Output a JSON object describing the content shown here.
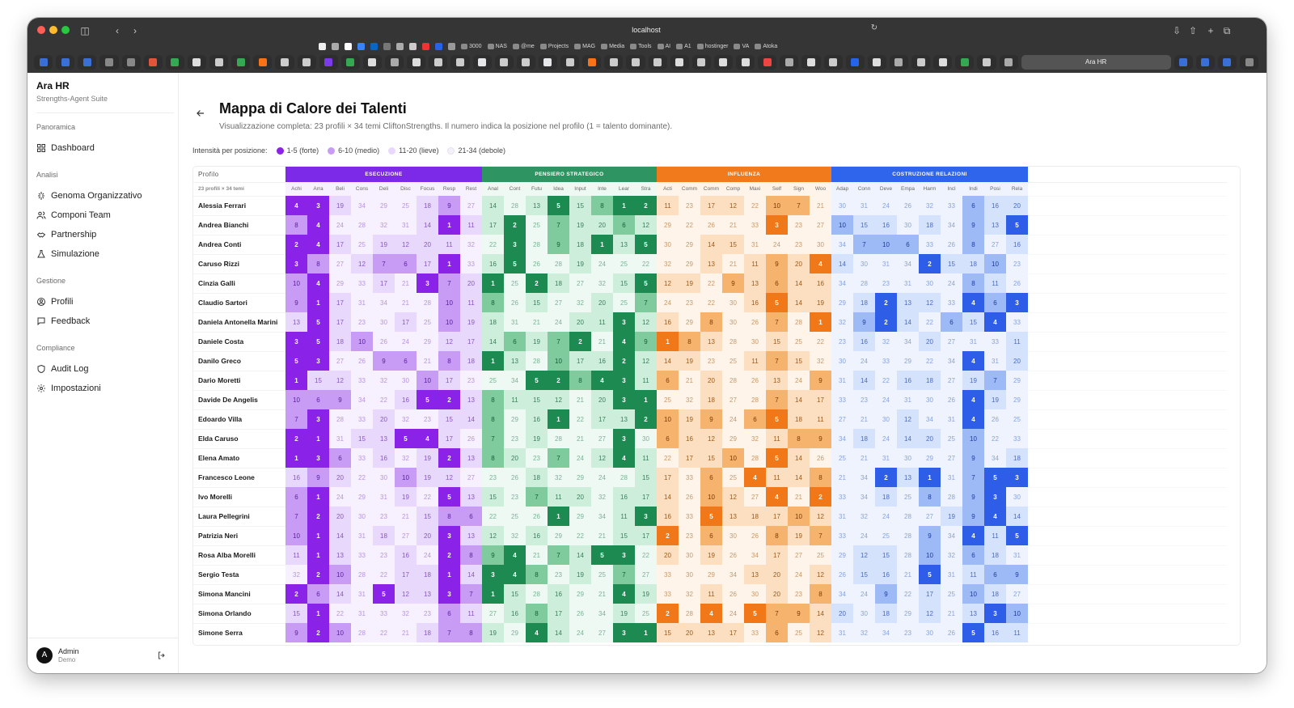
{
  "browser": {
    "url": "localhost",
    "active_tab": "Ara HR",
    "bookmarks": [
      "3000",
      "NAS",
      "@me",
      "Projects",
      "MAG",
      "Media",
      "Tools",
      "AI",
      "A1",
      "hostinger",
      "VA",
      "Atoka"
    ]
  },
  "app": {
    "name": "Ara HR",
    "subtitle": "Strengths-Agent Suite"
  },
  "sidebar": {
    "sections": [
      {
        "title": "Panoramica",
        "items": [
          {
            "label": "Dashboard",
            "icon": "grid-icon"
          }
        ]
      },
      {
        "title": "Analisi",
        "items": [
          {
            "label": "Genoma Organizzativo",
            "icon": "dna-icon"
          },
          {
            "label": "Componi Team",
            "icon": "users-icon"
          },
          {
            "label": "Partnership",
            "icon": "handshake-icon"
          },
          {
            "label": "Simulazione",
            "icon": "flask-icon"
          }
        ]
      },
      {
        "title": "Gestione",
        "items": [
          {
            "label": "Profili",
            "icon": "user-circle-icon"
          },
          {
            "label": "Feedback",
            "icon": "message-icon"
          }
        ]
      },
      {
        "title": "Compliance",
        "items": [
          {
            "label": "Audit Log",
            "icon": "shield-icon"
          },
          {
            "label": "Impostazioni",
            "icon": "gear-icon"
          }
        ]
      }
    ],
    "user": {
      "initial": "A",
      "name": "Admin",
      "role": "Demo"
    }
  },
  "page": {
    "title": "Mappa di Calore dei Talenti",
    "description": "Visualizzazione completa: 23 profili × 34 temi CliftonStrengths. Il numero indica la posizione nel profilo (1 = talento dominante)."
  },
  "legend": {
    "label": "Intensità per posizione:",
    "items": [
      "1-5 (forte)",
      "6-10 (medio)",
      "11-20 (lieve)",
      "21-34 (debole)"
    ]
  },
  "table": {
    "profile_header": "Profilo",
    "profile_count": "23 profili × 34 temi",
    "groups": [
      {
        "name": "ESECUZIONE",
        "colors": {
          "header": "#7c2ae8",
          "c1": "#8b22e8",
          "c2": "#c89cf4",
          "c3": "#e8d8fb",
          "c4": "#f7f0fe",
          "t1": "#ffffff",
          "t2": "#5b1c9e",
          "t3": "#8a56c8",
          "t4": "#b796e0"
        },
        "themes": [
          "Achi",
          "Arra",
          "Beli",
          "Cons",
          "Deli",
          "Disc",
          "Focus",
          "Resp",
          "Rest"
        ]
      },
      {
        "name": "PENSIERO STRATEGICO",
        "colors": {
          "header": "#2e9562",
          "c1": "#1d8a52",
          "c2": "#7fcb9e",
          "c3": "#cdeedb",
          "c4": "#eef9f3",
          "t1": "#ffffff",
          "t2": "#155c36",
          "t3": "#3a7f58",
          "t4": "#7bb394"
        },
        "themes": [
          "Anal",
          "Cont",
          "Futu",
          "Idea",
          "Input",
          "Inte",
          "Lear",
          "Stra"
        ]
      },
      {
        "name": "INFLUENZA",
        "colors": {
          "header": "#f07a1c",
          "c1": "#f07818",
          "c2": "#f5b36e",
          "c3": "#fbdfc0",
          "c4": "#fef4ea",
          "t1": "#ffffff",
          "t2": "#7a3a04",
          "t3": "#9c5a1c",
          "t4": "#c8986a"
        },
        "themes": [
          "Acti",
          "Comm",
          "Comm",
          "Comp",
          "Maxi",
          "Self",
          "Sign",
          "Woo"
        ]
      },
      {
        "name": "COSTRUZIONE RELAZIONI",
        "colors": {
          "header": "#2f64ec",
          "c1": "#2e5ee8",
          "c2": "#9dbaf6",
          "c3": "#d5e2fc",
          "c4": "#eef3fe",
          "t1": "#ffffff",
          "t2": "#1b3c9c",
          "t3": "#4a6cc4",
          "t4": "#88a3de"
        },
        "themes": [
          "Adap",
          "Conn",
          "Deve",
          "Empa",
          "Harm",
          "Incl",
          "Indi",
          "Posi",
          "Rela"
        ]
      }
    ],
    "rows": [
      {
        "name": "Alessia Ferrari",
        "v": [
          4,
          3,
          19,
          34,
          29,
          25,
          18,
          9,
          27,
          14,
          28,
          13,
          5,
          15,
          8,
          1,
          2,
          11,
          23,
          17,
          12,
          22,
          10,
          7,
          21,
          30,
          31,
          24,
          26,
          32,
          33,
          6,
          16,
          20
        ]
      },
      {
        "name": "Andrea Bianchi",
        "v": [
          8,
          4,
          24,
          28,
          32,
          31,
          14,
          1,
          11,
          17,
          2,
          25,
          7,
          19,
          20,
          6,
          12,
          29,
          22,
          26,
          21,
          33,
          3,
          23,
          27,
          10,
          15,
          16,
          30,
          18,
          34,
          9,
          13,
          5
        ]
      },
      {
        "name": "Andrea Conti",
        "v": [
          2,
          4,
          17,
          25,
          19,
          12,
          20,
          11,
          32,
          22,
          3,
          28,
          9,
          18,
          1,
          13,
          5,
          30,
          29,
          14,
          15,
          31,
          24,
          23,
          30,
          34,
          7,
          10,
          6,
          33,
          26,
          8,
          27,
          16
        ]
      },
      {
        "name": "Caruso Rizzi",
        "v": [
          3,
          8,
          27,
          12,
          7,
          6,
          17,
          1,
          33,
          16,
          5,
          26,
          28,
          19,
          24,
          25,
          22,
          32,
          29,
          13,
          21,
          11,
          9,
          20,
          4,
          14,
          30,
          31,
          34,
          2,
          15,
          18,
          10,
          23
        ]
      },
      {
        "name": "Cinzia Galli",
        "v": [
          10,
          4,
          29,
          33,
          17,
          21,
          3,
          7,
          20,
          1,
          25,
          2,
          18,
          27,
          32,
          15,
          5,
          12,
          19,
          22,
          9,
          13,
          6,
          14,
          16,
          34,
          28,
          23,
          31,
          30,
          24,
          8,
          11,
          26
        ]
      },
      {
        "name": "Claudio Sartori",
        "v": [
          9,
          1,
          17,
          31,
          34,
          21,
          28,
          10,
          11,
          8,
          26,
          15,
          27,
          32,
          20,
          25,
          7,
          24,
          23,
          22,
          30,
          16,
          5,
          14,
          19,
          29,
          18,
          2,
          13,
          12,
          33,
          4,
          6,
          3
        ]
      },
      {
        "name": "Daniela Antonella Marini",
        "v": [
          13,
          5,
          17,
          23,
          30,
          17,
          25,
          10,
          19,
          18,
          31,
          21,
          24,
          20,
          11,
          3,
          12,
          16,
          29,
          8,
          30,
          26,
          7,
          28,
          1,
          32,
          9,
          2,
          14,
          22,
          6,
          15,
          4,
          33
        ]
      },
      {
        "name": "Daniele Costa",
        "v": [
          3,
          5,
          18,
          10,
          26,
          24,
          29,
          12,
          17,
          14,
          6,
          19,
          7,
          2,
          21,
          4,
          9,
          1,
          8,
          13,
          28,
          30,
          15,
          25,
          22,
          23,
          16,
          32,
          34,
          20,
          27,
          31,
          33,
          11
        ]
      },
      {
        "name": "Danilo Greco",
        "v": [
          5,
          3,
          27,
          26,
          9,
          6,
          21,
          8,
          18,
          1,
          13,
          28,
          10,
          17,
          16,
          2,
          12,
          14,
          19,
          23,
          25,
          11,
          7,
          15,
          32,
          30,
          24,
          33,
          29,
          22,
          34,
          4,
          31,
          20
        ]
      },
      {
        "name": "Dario Moretti",
        "v": [
          1,
          15,
          12,
          33,
          32,
          30,
          10,
          17,
          23,
          25,
          34,
          5,
          2,
          8,
          4,
          3,
          11,
          6,
          21,
          20,
          28,
          26,
          13,
          24,
          9,
          31,
          14,
          22,
          16,
          18,
          27,
          19,
          7,
          29
        ]
      },
      {
        "name": "Davide De Angelis",
        "v": [
          10,
          6,
          9,
          34,
          22,
          16,
          5,
          2,
          13,
          8,
          11,
          15,
          12,
          21,
          20,
          3,
          1,
          25,
          32,
          18,
          27,
          28,
          7,
          14,
          17,
          33,
          23,
          24,
          31,
          30,
          26,
          4,
          19,
          29
        ]
      },
      {
        "name": "Edoardo Villa",
        "v": [
          7,
          3,
          28,
          33,
          20,
          32,
          23,
          15,
          14,
          8,
          29,
          16,
          1,
          22,
          17,
          13,
          2,
          10,
          19,
          9,
          24,
          6,
          5,
          18,
          11,
          27,
          21,
          30,
          12,
          34,
          31,
          4,
          26,
          25
        ]
      },
      {
        "name": "Elda Caruso",
        "v": [
          2,
          1,
          31,
          15,
          13,
          5,
          4,
          17,
          26,
          7,
          23,
          19,
          28,
          21,
          27,
          3,
          30,
          6,
          16,
          12,
          29,
          32,
          11,
          8,
          9,
          34,
          18,
          24,
          14,
          20,
          25,
          10,
          22,
          33
        ]
      },
      {
        "name": "Elena Amato",
        "v": [
          1,
          3,
          6,
          33,
          16,
          32,
          19,
          2,
          13,
          8,
          20,
          23,
          7,
          24,
          12,
          4,
          11,
          22,
          17,
          15,
          10,
          28,
          5,
          14,
          26,
          25,
          21,
          31,
          30,
          29,
          27,
          9,
          34,
          18
        ]
      },
      {
        "name": "Francesco Leone",
        "v": [
          16,
          9,
          20,
          22,
          30,
          10,
          19,
          12,
          27,
          23,
          26,
          18,
          32,
          29,
          24,
          28,
          15,
          17,
          33,
          6,
          25,
          4,
          11,
          14,
          8,
          21,
          34,
          2,
          13,
          1,
          31,
          7,
          5,
          3
        ]
      },
      {
        "name": "Ivo Morelli",
        "v": [
          6,
          1,
          24,
          29,
          31,
          19,
          22,
          5,
          13,
          15,
          23,
          7,
          11,
          20,
          32,
          16,
          17,
          14,
          26,
          10,
          12,
          27,
          4,
          21,
          2,
          33,
          34,
          18,
          25,
          8,
          28,
          9,
          3,
          30
        ]
      },
      {
        "name": "Laura Pellegrini",
        "v": [
          7,
          2,
          20,
          30,
          23,
          21,
          15,
          8,
          6,
          22,
          25,
          26,
          1,
          29,
          34,
          11,
          3,
          16,
          33,
          5,
          13,
          18,
          17,
          10,
          12,
          31,
          32,
          24,
          28,
          27,
          19,
          9,
          4,
          14
        ]
      },
      {
        "name": "Patrizia Neri",
        "v": [
          10,
          1,
          14,
          31,
          18,
          27,
          20,
          3,
          13,
          12,
          32,
          16,
          29,
          22,
          21,
          15,
          17,
          2,
          23,
          6,
          30,
          26,
          8,
          19,
          7,
          33,
          24,
          25,
          28,
          9,
          34,
          4,
          11,
          5
        ]
      },
      {
        "name": "Rosa Alba Morelli",
        "v": [
          11,
          1,
          13,
          33,
          23,
          16,
          24,
          2,
          8,
          9,
          4,
          21,
          7,
          14,
          5,
          3,
          22,
          20,
          30,
          19,
          26,
          34,
          17,
          27,
          25,
          29,
          12,
          15,
          28,
          10,
          32,
          6,
          18,
          31
        ]
      },
      {
        "name": "Sergio Testa",
        "v": [
          32,
          2,
          10,
          28,
          22,
          17,
          18,
          1,
          14,
          3,
          4,
          8,
          23,
          19,
          25,
          7,
          27,
          33,
          30,
          29,
          34,
          13,
          20,
          24,
          12,
          26,
          15,
          16,
          21,
          5,
          31,
          11,
          6,
          9
        ]
      },
      {
        "name": "Simona Mancini",
        "v": [
          2,
          6,
          14,
          31,
          5,
          12,
          13,
          3,
          7,
          1,
          15,
          28,
          16,
          29,
          21,
          4,
          19,
          33,
          32,
          11,
          26,
          30,
          20,
          23,
          8,
          34,
          24,
          9,
          22,
          17,
          25,
          10,
          18,
          27
        ]
      },
      {
        "name": "Simona Orlando",
        "v": [
          15,
          1,
          22,
          31,
          33,
          32,
          23,
          6,
          11,
          27,
          16,
          8,
          17,
          26,
          34,
          19,
          25,
          2,
          28,
          4,
          24,
          5,
          7,
          9,
          14,
          20,
          30,
          18,
          29,
          12,
          21,
          13,
          3,
          10
        ]
      },
      {
        "name": "Simone Serra",
        "v": [
          9,
          2,
          10,
          28,
          22,
          21,
          18,
          7,
          8,
          19,
          29,
          4,
          14,
          24,
          27,
          3,
          1,
          15,
          20,
          13,
          17,
          33,
          6,
          25,
          12,
          31,
          32,
          34,
          23,
          30,
          26,
          5,
          16,
          11
        ]
      }
    ]
  }
}
